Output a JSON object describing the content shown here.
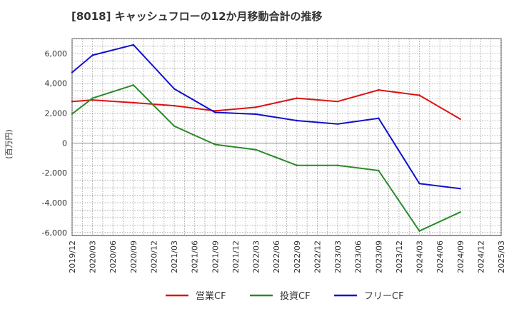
{
  "chart_data": {
    "type": "line",
    "title": "[8018]  キャッシュフローの12か月移動合計の推移",
    "ylabel": "(百万円)",
    "xlabel": "",
    "ylim": [
      -6200,
      7000
    ],
    "yticks": [
      6000,
      4000,
      2000,
      0,
      -2000,
      -4000,
      -6000
    ],
    "ytick_labels": [
      "6,000",
      "4,000",
      "2,000",
      "0",
      "-2,000",
      "-4,000",
      "-6,000"
    ],
    "categories": [
      "2019/12",
      "2020/03",
      "2020/06",
      "2020/09",
      "2020/12",
      "2021/03",
      "2021/06",
      "2021/09",
      "2021/12",
      "2022/03",
      "2022/06",
      "2022/09",
      "2022/12",
      "2023/03",
      "2023/06",
      "2023/09",
      "2023/12",
      "2024/03",
      "2024/06",
      "2024/09",
      "2024/12",
      "2025/03"
    ],
    "grid": true,
    "legend_position": "bottom",
    "series": [
      {
        "name": "営業CF",
        "color": "#dd1111",
        "values": [
          2780,
          2880,
          null,
          2700,
          null,
          2500,
          null,
          2150,
          null,
          2400,
          null,
          3000,
          null,
          2780,
          null,
          3550,
          null,
          3200,
          null,
          1600,
          null,
          null
        ]
      },
      {
        "name": "投資CF",
        "color": "#2a8a2a",
        "values": [
          1950,
          3000,
          null,
          3880,
          null,
          1130,
          null,
          -100,
          null,
          -450,
          null,
          -1500,
          null,
          -1500,
          null,
          -1850,
          null,
          -5900,
          null,
          -4630,
          null,
          null
        ]
      },
      {
        "name": "フリーCF",
        "color": "#1111cc",
        "values": [
          4730,
          5880,
          null,
          6580,
          null,
          3630,
          null,
          2050,
          null,
          1930,
          null,
          1500,
          null,
          1270,
          null,
          1660,
          null,
          -2720,
          null,
          -3060,
          null,
          null
        ]
      }
    ]
  }
}
